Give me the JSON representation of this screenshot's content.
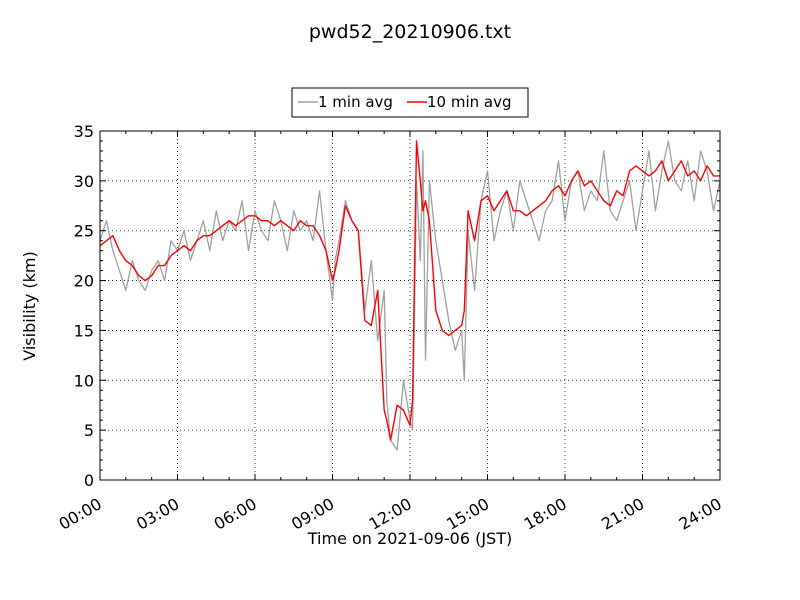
{
  "chart_data": {
    "type": "line",
    "title": "pwd52_20210906.txt",
    "xlabel": "Time on 2021-09-06 (JST)",
    "ylabel": "Visibility (km)",
    "xlim_hours": [
      0,
      24
    ],
    "ylim": [
      0,
      35
    ],
    "x_tick_labels": [
      "00:00",
      "03:00",
      "06:00",
      "09:00",
      "12:00",
      "15:00",
      "18:00",
      "21:00",
      "24:00"
    ],
    "y_tick_labels": [
      "0",
      "5",
      "10",
      "15",
      "20",
      "25",
      "30",
      "35"
    ],
    "grid": true,
    "legend_position": "top-center",
    "series": [
      {
        "name": "1 min avg",
        "color": "#a0a0a0",
        "x": [
          0,
          0.25,
          0.5,
          0.75,
          1,
          1.25,
          1.5,
          1.75,
          2,
          2.25,
          2.5,
          2.75,
          3,
          3.25,
          3.5,
          3.75,
          4,
          4.25,
          4.5,
          4.75,
          5,
          5.25,
          5.5,
          5.75,
          6,
          6.25,
          6.5,
          6.75,
          7,
          7.25,
          7.5,
          7.75,
          8,
          8.25,
          8.5,
          8.75,
          9,
          9.1,
          9.25,
          9.5,
          9.75,
          10,
          10.25,
          10.5,
          10.75,
          11,
          11.1,
          11.25,
          11.5,
          11.75,
          12,
          12.1,
          12.25,
          12.4,
          12.5,
          12.6,
          12.75,
          13,
          13.25,
          13.5,
          13.75,
          14,
          14.1,
          14.25,
          14.5,
          14.75,
          15,
          15.25,
          15.5,
          15.75,
          16,
          16.25,
          16.5,
          16.75,
          17,
          17.25,
          17.5,
          17.75,
          18,
          18.25,
          18.5,
          18.75,
          19,
          19.25,
          19.5,
          19.75,
          20,
          20.25,
          20.5,
          20.75,
          21,
          21.25,
          21.5,
          21.75,
          22,
          22.25,
          22.5,
          22.75,
          23,
          23.25,
          23.5,
          23.75,
          24
        ],
        "values": [
          24,
          26,
          23,
          21,
          19,
          22,
          20,
          19,
          21,
          22,
          20,
          24,
          23,
          25,
          22,
          24,
          26,
          23,
          27,
          24,
          26,
          25,
          28,
          23,
          27,
          25,
          24,
          28,
          26,
          23,
          27,
          25,
          26,
          24,
          29,
          23,
          18,
          22,
          24,
          28,
          26,
          25,
          17,
          22,
          14,
          19,
          8,
          4,
          3,
          10,
          6,
          5,
          30,
          22,
          33,
          12,
          30,
          24,
          20,
          16,
          13,
          15,
          10,
          25,
          19,
          28,
          31,
          24,
          27,
          29,
          25,
          30,
          28,
          26,
          24,
          27,
          28,
          32,
          26,
          30,
          31,
          27,
          29,
          28,
          33,
          27,
          26,
          28,
          30,
          25,
          29,
          33,
          27,
          31,
          34,
          30,
          29,
          32,
          28,
          33,
          31,
          27,
          30
        ]
      },
      {
        "name": "10 min avg",
        "color": "#ff0000",
        "x": [
          0,
          0.25,
          0.5,
          0.75,
          1,
          1.25,
          1.5,
          1.75,
          2,
          2.25,
          2.5,
          2.75,
          3,
          3.25,
          3.5,
          3.75,
          4,
          4.25,
          4.5,
          4.75,
          5,
          5.25,
          5.5,
          5.75,
          6,
          6.25,
          6.5,
          6.75,
          7,
          7.25,
          7.5,
          7.75,
          8,
          8.25,
          8.5,
          8.75,
          9,
          9.1,
          9.25,
          9.5,
          9.75,
          10,
          10.25,
          10.5,
          10.75,
          11,
          11.1,
          11.25,
          11.5,
          11.75,
          12,
          12.1,
          12.25,
          12.4,
          12.5,
          12.6,
          12.75,
          13,
          13.25,
          13.5,
          13.75,
          14,
          14.1,
          14.25,
          14.5,
          14.75,
          15,
          15.25,
          15.5,
          15.75,
          16,
          16.25,
          16.5,
          16.75,
          17,
          17.25,
          17.5,
          17.75,
          18,
          18.25,
          18.5,
          18.75,
          19,
          19.25,
          19.5,
          19.75,
          20,
          20.25,
          20.5,
          20.75,
          21,
          21.25,
          21.5,
          21.75,
          22,
          22.25,
          22.5,
          22.75,
          23,
          23.25,
          23.5,
          23.75,
          24
        ],
        "values": [
          23.5,
          24,
          24.5,
          23,
          22,
          21.5,
          20.5,
          20,
          20.5,
          21.5,
          21.5,
          22.5,
          23,
          23.5,
          23,
          24,
          24.5,
          24.5,
          25,
          25.5,
          26,
          25.5,
          26,
          26.5,
          26.5,
          26,
          26,
          25.5,
          26,
          25.5,
          25,
          26,
          25.5,
          25.5,
          24.5,
          23,
          20,
          21,
          23,
          27.5,
          26,
          25,
          16,
          15.5,
          19,
          7,
          6,
          4,
          7.5,
          7,
          5.5,
          8,
          34,
          30,
          27,
          28,
          26,
          17,
          15,
          14.5,
          15,
          15.5,
          17,
          27,
          24,
          28,
          28.5,
          27,
          28,
          29,
          27,
          27,
          26.5,
          27,
          27.5,
          28,
          29,
          29.5,
          28.5,
          30,
          31,
          29.5,
          30,
          29,
          28,
          27.5,
          29,
          28.5,
          31,
          31.5,
          31,
          30.5,
          31,
          32,
          30,
          31,
          32,
          30.5,
          31,
          30,
          31.5,
          30.5,
          30.5
        ]
      }
    ]
  }
}
